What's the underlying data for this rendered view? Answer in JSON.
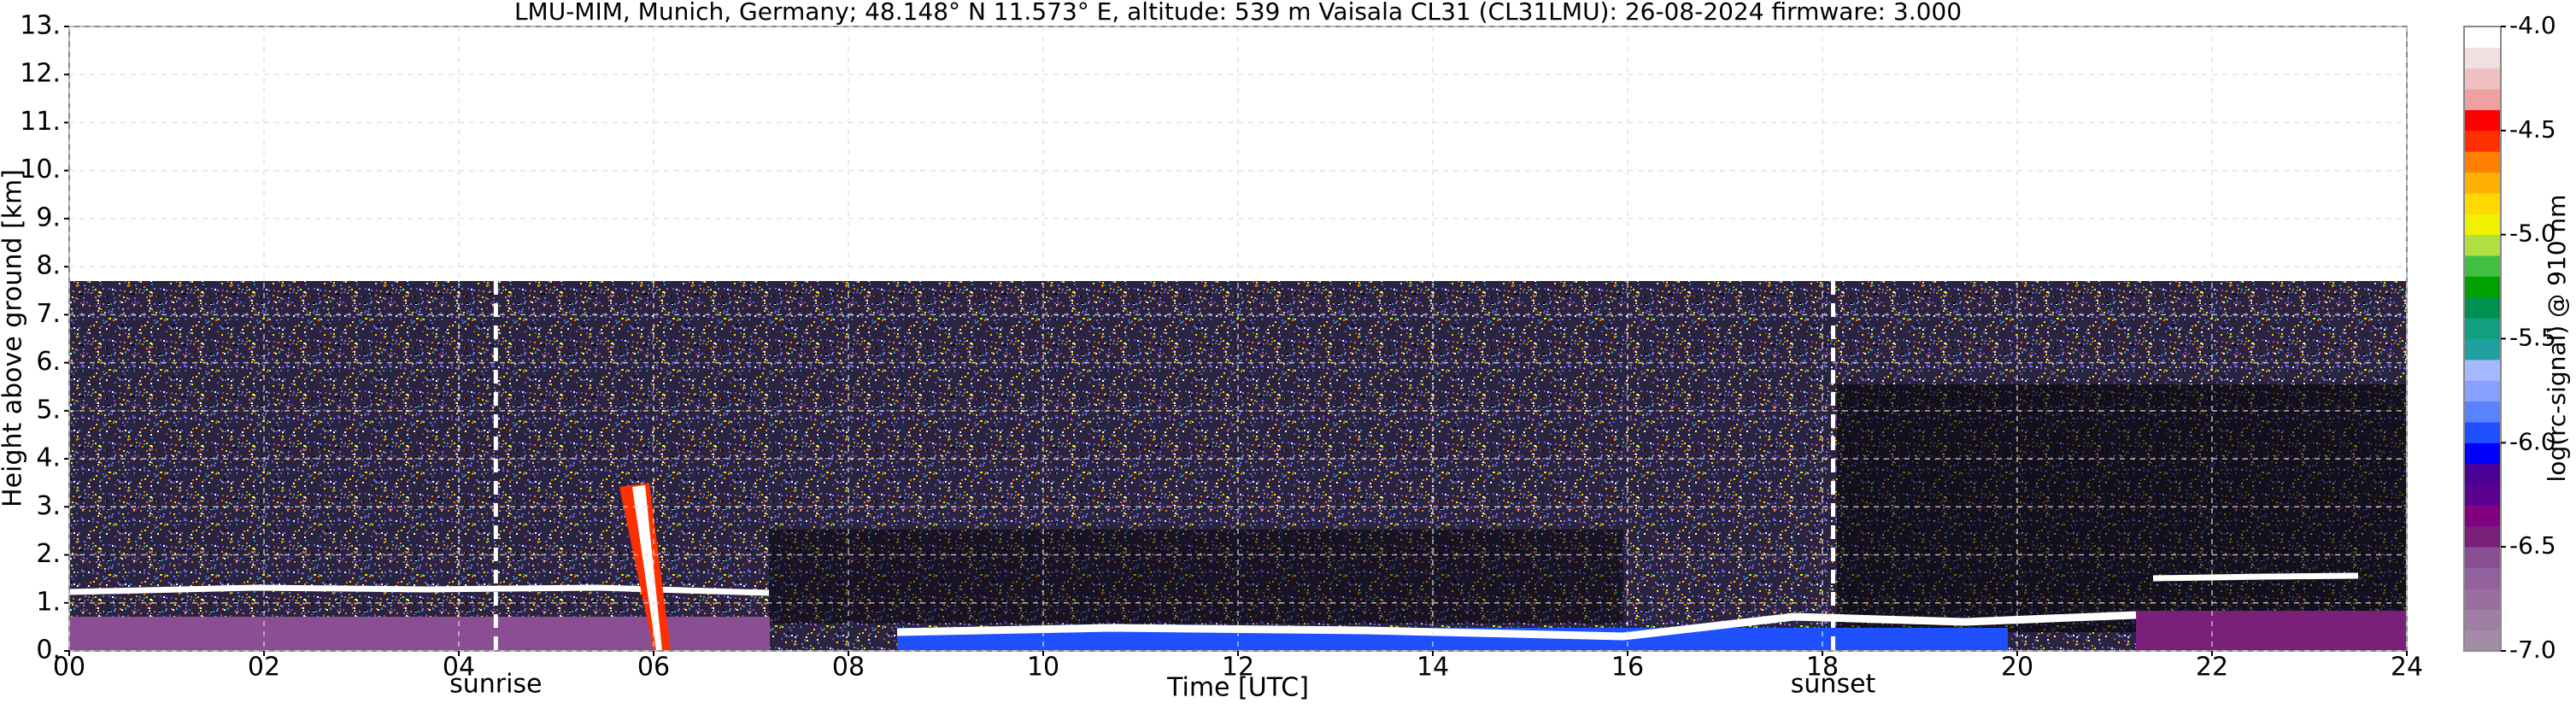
{
  "chart_data": {
    "type": "heatmap",
    "title": "LMU-MIM, Munich, Germany; 48.148° N 11.573° E, altitude: 539 m    Vaisala CL31 (CL31LMU): 26-08-2024    firmware: 3.000",
    "xlabel": "Time [UTC]",
    "ylabel": "Height above ground [km]",
    "xlim": [
      0,
      24
    ],
    "xticks": [
      {
        "value": 0,
        "label": "00"
      },
      {
        "value": 2,
        "label": "02"
      },
      {
        "value": 4,
        "label": "04"
      },
      {
        "value": 6,
        "label": "06"
      },
      {
        "value": 8,
        "label": "08"
      },
      {
        "value": 10,
        "label": "10"
      },
      {
        "value": 12,
        "label": "12"
      },
      {
        "value": 14,
        "label": "14"
      },
      {
        "value": 16,
        "label": "16"
      },
      {
        "value": 18,
        "label": "18"
      },
      {
        "value": 20,
        "label": "20"
      },
      {
        "value": 22,
        "label": "22"
      },
      {
        "value": 24,
        "label": "24"
      }
    ],
    "ylim": [
      0,
      13
    ],
    "yticks": [
      {
        "value": 0,
        "label": "0."
      },
      {
        "value": 1,
        "label": "1."
      },
      {
        "value": 2,
        "label": "2."
      },
      {
        "value": 3,
        "label": "3."
      },
      {
        "value": 4,
        "label": "4."
      },
      {
        "value": 5,
        "label": "5."
      },
      {
        "value": 6,
        "label": "6."
      },
      {
        "value": 7,
        "label": "7."
      },
      {
        "value": 8,
        "label": "8."
      },
      {
        "value": 9,
        "label": "9."
      },
      {
        "value": 10,
        "label": "10."
      },
      {
        "value": 11,
        "label": "11."
      },
      {
        "value": 12,
        "label": "12."
      },
      {
        "value": 13,
        "label": "13."
      }
    ],
    "grid": true,
    "annotations": [
      {
        "text": "sunrise",
        "x": 4.38
      },
      {
        "text": "sunset",
        "x": 18.11
      }
    ],
    "colorbar": {
      "label": "log(rc-signal) @ 910 nm",
      "clim": [
        -7.0,
        -4.0
      ],
      "ticks": [
        {
          "value": -4.0,
          "label": "-4.0"
        },
        {
          "value": -4.5,
          "label": "-4.5"
        },
        {
          "value": -5.0,
          "label": "-5.0"
        },
        {
          "value": -5.5,
          "label": "-5.5"
        },
        {
          "value": -6.0,
          "label": "-6.0"
        },
        {
          "value": -6.5,
          "label": "-6.5"
        },
        {
          "value": -7.0,
          "label": "-7.0"
        }
      ],
      "colors": [
        "#a48ba8",
        "#a07fa5",
        "#9b6ea0",
        "#92609a",
        "#8a4f92",
        "#7a1f7a",
        "#800080",
        "#5a0090",
        "#4b0096",
        "#0000ff",
        "#1e50ff",
        "#5a82ff",
        "#87a0ff",
        "#a6b8ff",
        "#20a0a0",
        "#10a080",
        "#009050",
        "#00a000",
        "#40c040",
        "#b0e040",
        "#f0f000",
        "#ffd800",
        "#ffb000",
        "#ff8000",
        "#ff3000",
        "#ff0000",
        "#f0a0a0",
        "#f0c0c0",
        "#f0e0e0",
        "#ffffff"
      ]
    }
  }
}
